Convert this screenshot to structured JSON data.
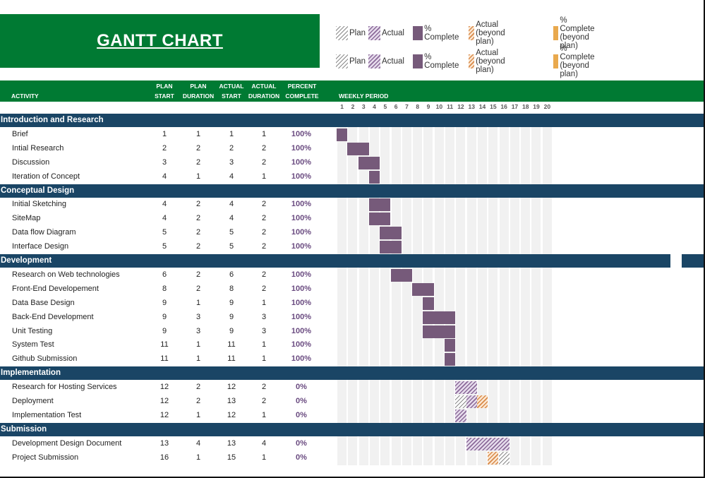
{
  "title": "GANTT CHART",
  "legend_rows": [
    [
      {
        "label": "Plan",
        "style": "plan",
        "icon": "plan-hatch-icon"
      },
      {
        "label": "Actual",
        "style": "actual",
        "icon": "actual-hatch-icon"
      },
      {
        "label": "% Complete",
        "style": "pct",
        "icon": "percent-complete-icon"
      },
      {
        "label": "Actual (beyond plan)",
        "style": "beyond",
        "icon": "beyond-plan-hatch-icon"
      },
      {
        "label": "% Complete (beyond plan)",
        "style": "pctbeyond",
        "icon": "percent-complete-beyond-icon"
      }
    ],
    [
      {
        "label": "Plan",
        "style": "plan",
        "icon": "plan-hatch-icon"
      },
      {
        "label": "Actual",
        "style": "actual",
        "icon": "actual-hatch-icon"
      },
      {
        "label": "% Complete",
        "style": "pct",
        "icon": "percent-complete-icon"
      },
      {
        "label": "Actual (beyond plan)",
        "style": "beyond",
        "icon": "beyond-plan-hatch-icon"
      },
      {
        "label": "% Complete (beyond plan)",
        "style": "pctbeyond",
        "icon": "percent-complete-beyond-icon"
      }
    ]
  ],
  "columns": {
    "activity": "ACTIVITY",
    "plan_start": [
      "PLAN",
      "START"
    ],
    "plan_duration": [
      "PLAN",
      "DURATION"
    ],
    "actual_start": [
      "ACTUAL",
      "START"
    ],
    "actual_duration": [
      "ACTUAL",
      "DURATION"
    ],
    "percent_complete": [
      "PERCENT",
      "COMPLETE"
    ],
    "weekly_period": "WEEKLY PERIOD"
  },
  "weeks": [
    "1",
    "2",
    "3",
    "4",
    "5",
    "6",
    "7",
    "8",
    "9",
    "10",
    "11",
    "12",
    "13",
    "14",
    "15",
    "16",
    "17",
    "18",
    "19",
    "20"
  ],
  "colors": {
    "green": "#007a33",
    "navy": "#1a4565",
    "purple": "#765a7a",
    "orange": "#e9a94d",
    "grid": "#f1f1f1"
  },
  "sections": [
    {
      "name": "Introduction and Research",
      "tasks": [
        {
          "name": "Brief",
          "ps": 1,
          "pd": 1,
          "as": 1,
          "ad": 1,
          "pct": "100%"
        },
        {
          "name": "Intial Research",
          "ps": 2,
          "pd": 2,
          "as": 2,
          "ad": 2,
          "pct": "100%"
        },
        {
          "name": "Discussion",
          "ps": 3,
          "pd": 2,
          "as": 3,
          "ad": 2,
          "pct": "100%"
        },
        {
          "name": "Iteration of Concept",
          "ps": 4,
          "pd": 1,
          "as": 4,
          "ad": 1,
          "pct": "100%"
        }
      ]
    },
    {
      "name": "Conceptual Design",
      "tasks": [
        {
          "name": "Initial Sketching",
          "ps": 4,
          "pd": 2,
          "as": 4,
          "ad": 2,
          "pct": "100%"
        },
        {
          "name": "SiteMap",
          "ps": 4,
          "pd": 2,
          "as": 4,
          "ad": 2,
          "pct": "100%"
        },
        {
          "name": "Data flow Diagram",
          "ps": 5,
          "pd": 2,
          "as": 5,
          "ad": 2,
          "pct": "100%"
        },
        {
          "name": "Interface Design",
          "ps": 5,
          "pd": 2,
          "as": 5,
          "ad": 2,
          "pct": "100%"
        }
      ]
    },
    {
      "name": "Development",
      "tasks": [
        {
          "name": "Research on Web technologies",
          "ps": 6,
          "pd": 2,
          "as": 6,
          "ad": 2,
          "pct": "100%"
        },
        {
          "name": "Front-End Developement",
          "ps": 8,
          "pd": 2,
          "as": 8,
          "ad": 2,
          "pct": "100%"
        },
        {
          "name": "Data Base Design",
          "ps": 9,
          "pd": 1,
          "as": 9,
          "ad": 1,
          "pct": "100%"
        },
        {
          "name": "Back-End Development",
          "ps": 9,
          "pd": 3,
          "as": 9,
          "ad": 3,
          "pct": "100%"
        },
        {
          "name": "Unit Testing",
          "ps": 9,
          "pd": 3,
          "as": 9,
          "ad": 3,
          "pct": "100%"
        },
        {
          "name": "System Test",
          "ps": 11,
          "pd": 1,
          "as": 11,
          "ad": 1,
          "pct": "100%"
        },
        {
          "name": "Github Submission",
          "ps": 11,
          "pd": 1,
          "as": 11,
          "ad": 1,
          "pct": "100%"
        }
      ]
    },
    {
      "name": "Implementation",
      "tasks": [
        {
          "name": "Research for Hosting Services",
          "ps": 12,
          "pd": 2,
          "as": 12,
          "ad": 2,
          "pct": "0%"
        },
        {
          "name": "Deployment",
          "ps": 12,
          "pd": 2,
          "as": 13,
          "ad": 2,
          "pct": "0%"
        },
        {
          "name": "Implementation Test",
          "ps": 12,
          "pd": 1,
          "as": 12,
          "ad": 1,
          "pct": "0%"
        }
      ]
    },
    {
      "name": "Submission",
      "tasks": [
        {
          "name": "Development Design Document",
          "ps": 13,
          "pd": 4,
          "as": 13,
          "ad": 4,
          "pct": "0%"
        },
        {
          "name": "Project Submission",
          "ps": 16,
          "pd": 1,
          "as": 15,
          "ad": 1,
          "pct": "0%"
        }
      ]
    }
  ]
}
